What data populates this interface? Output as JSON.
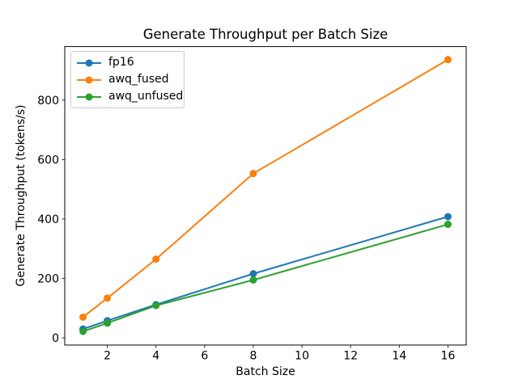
{
  "chart_data": {
    "type": "line",
    "title": "Generate Throughput per Batch Size",
    "xlabel": "Batch Size",
    "ylabel": "Generate Throughput (tokens/s)",
    "x": [
      1,
      2,
      4,
      8,
      16
    ],
    "series": [
      {
        "name": "fp16",
        "color": "#1f77b4",
        "values": [
          30,
          58,
          112,
          216,
          408
        ]
      },
      {
        "name": "awq_fused",
        "color": "#ff7f0e",
        "values": [
          70,
          134,
          265,
          553,
          936
        ]
      },
      {
        "name": "awq_unfused",
        "color": "#2ca02c",
        "values": [
          22,
          50,
          109,
          195,
          382
        ]
      }
    ],
    "xticks": [
      2,
      4,
      6,
      8,
      10,
      12,
      14,
      16
    ],
    "yticks": [
      0,
      200,
      400,
      600,
      800
    ],
    "xlim": [
      0.25,
      16.75
    ],
    "ylim": [
      -24,
      980
    ],
    "grid": false,
    "legend_position": "upper left",
    "marker": "o",
    "background": "#ffffff",
    "text_color": "#000000",
    "spine_color": "#000000",
    "legend_border_color": "#cccccc"
  }
}
